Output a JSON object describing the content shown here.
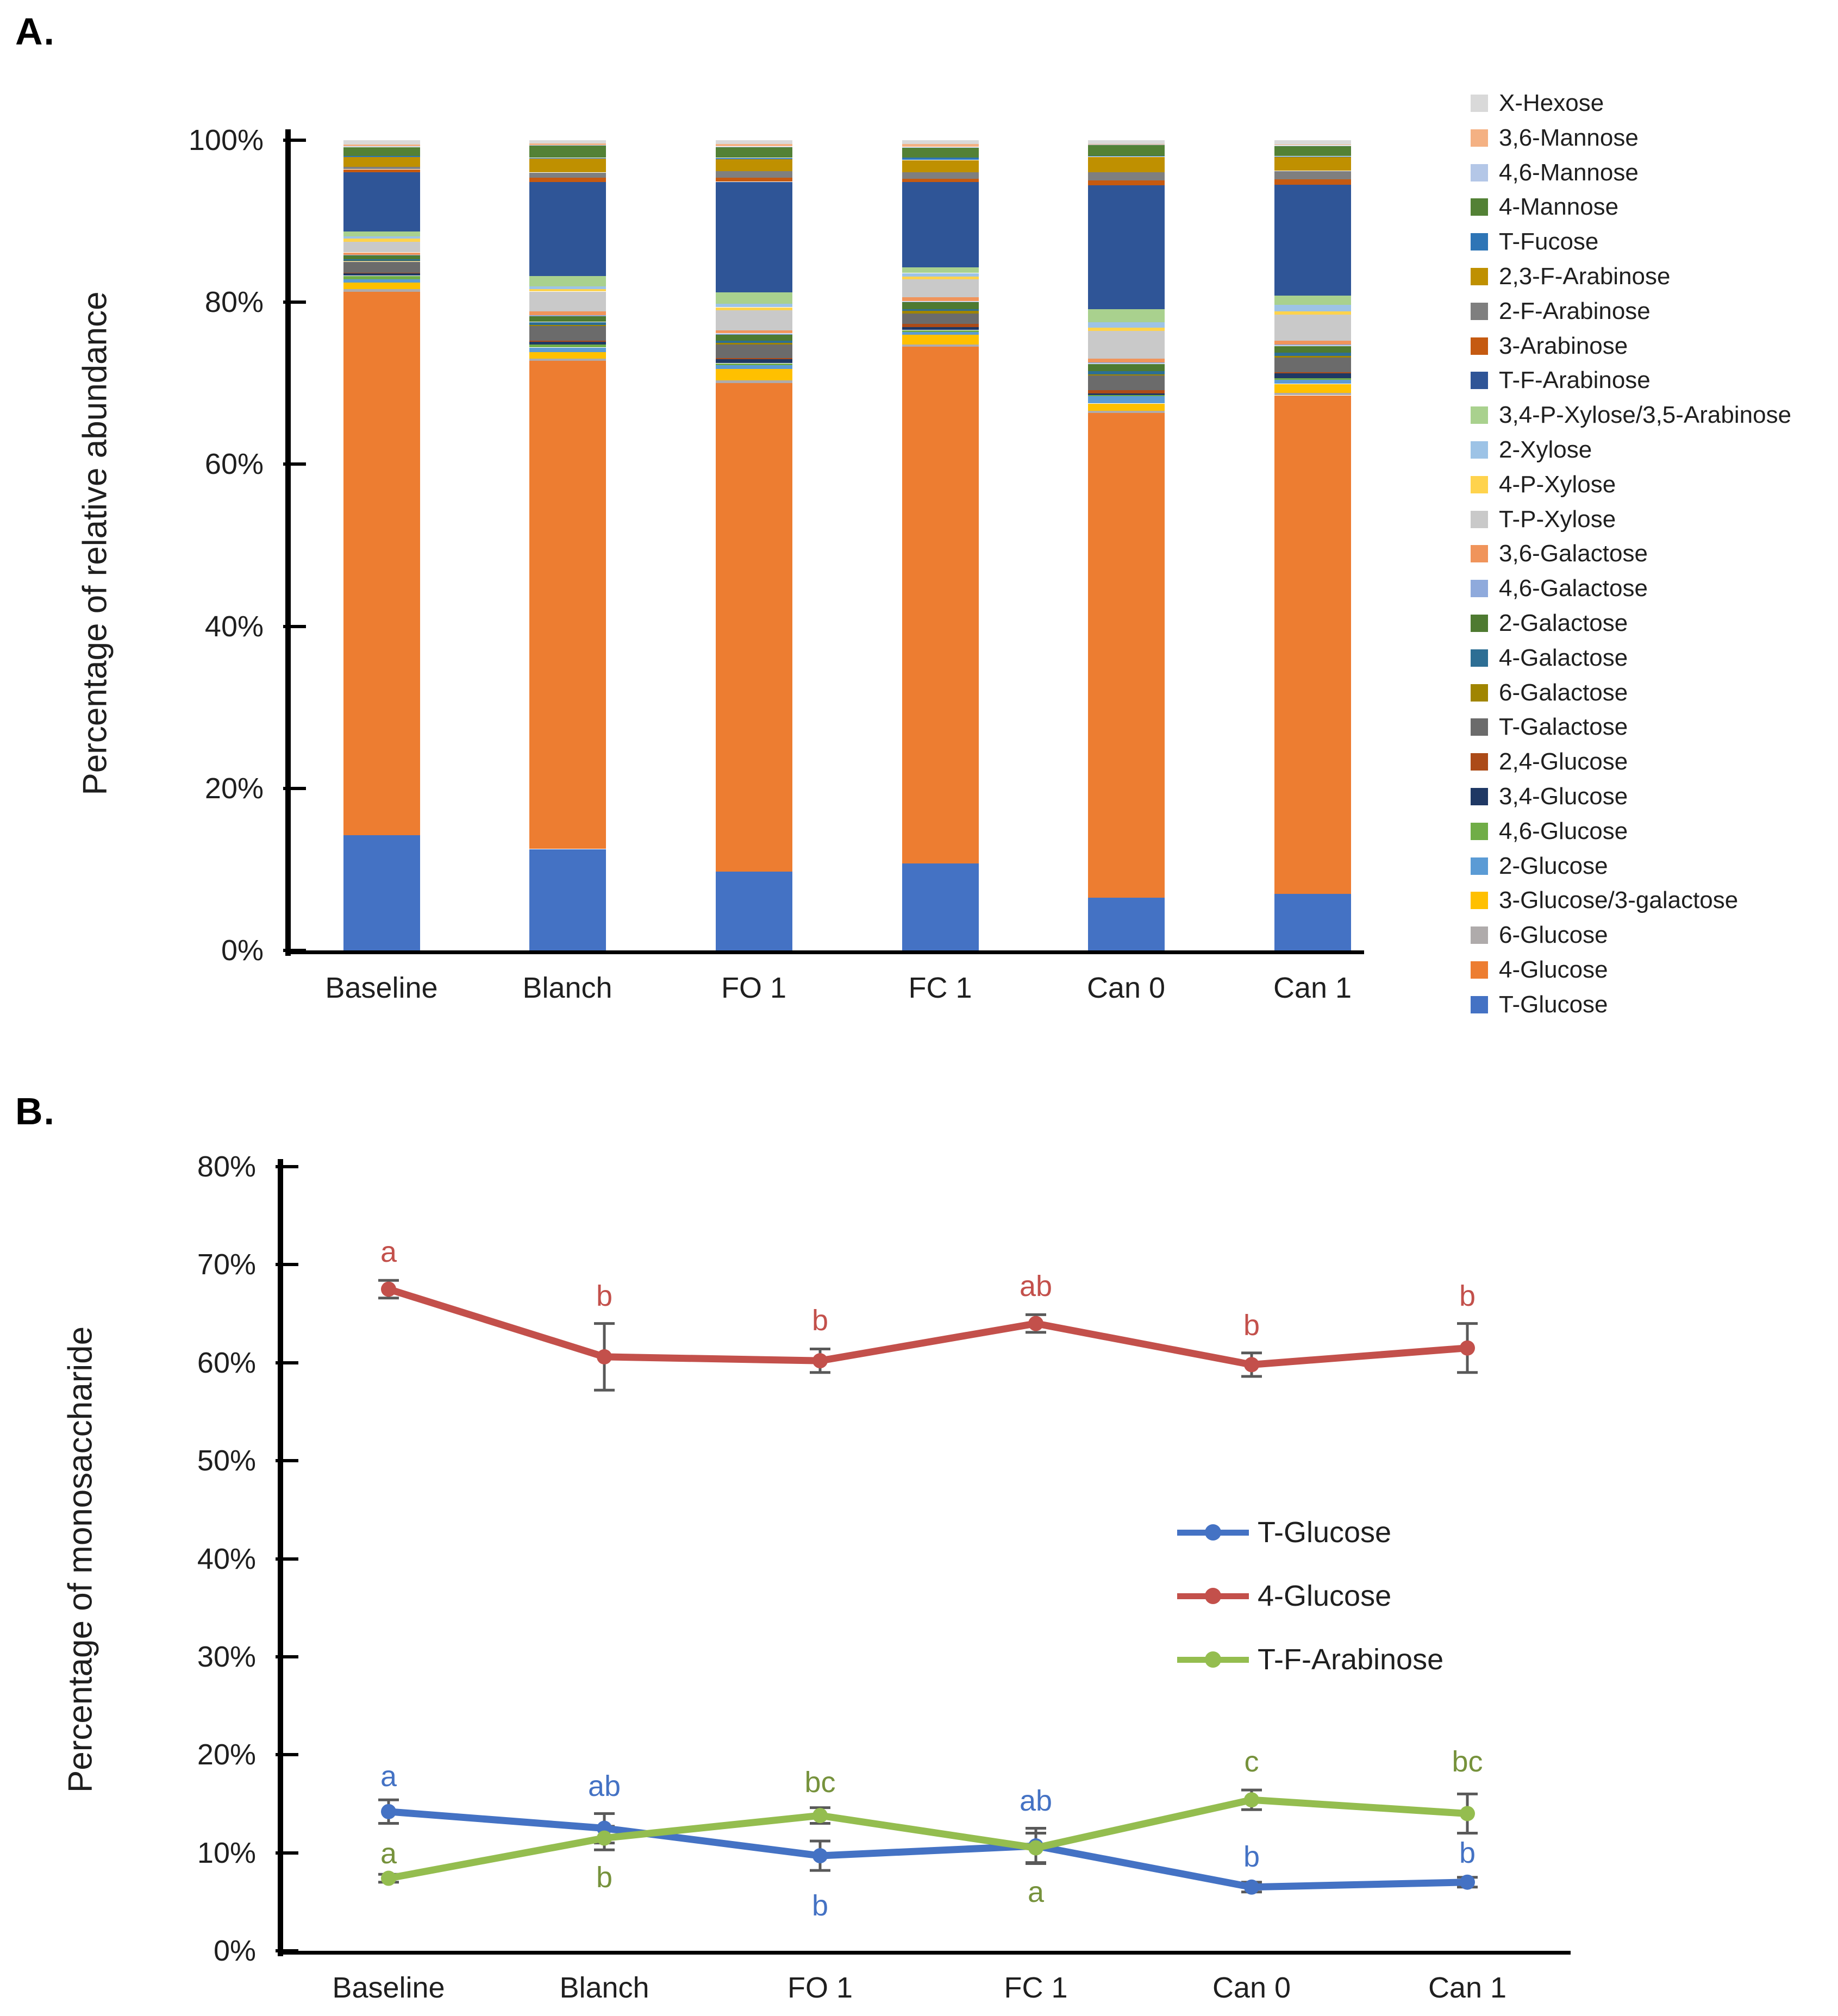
{
  "figure": {
    "panelA_label": "A.",
    "panelB_label": "B.",
    "background": "#ffffff",
    "text_color": "#1f1f1f",
    "axis_color": "#000000"
  },
  "chart_data": [
    {
      "type": "bar",
      "stacked": true,
      "title": "",
      "xlabel": "",
      "ylabel": "Percentage of relative abundance",
      "categories": [
        "Baseline",
        "Blanch",
        "FO 1",
        "FC 1",
        "Can 0",
        "Can 1"
      ],
      "ylim": [
        0,
        100
      ],
      "ytick_step": 20,
      "y_tick_labels": [
        "0%",
        "20%",
        "40%",
        "60%",
        "80%",
        "100%"
      ],
      "grid": false,
      "legend_position": "right",
      "legend_note": "legend displayed top-to-bottom is reverse of stacking order (stack builds bottom-up from T-Glucose)",
      "series": [
        {
          "name": "T-Glucose",
          "color": "#4472C4",
          "values": [
            14.2,
            12.5,
            9.7,
            10.7,
            6.5,
            7.0
          ]
        },
        {
          "name": "4-Glucose",
          "color": "#ED7D31",
          "values": [
            67.1,
            60.25,
            60.3,
            63.8,
            59.8,
            61.5
          ]
        },
        {
          "name": "6-Glucose",
          "color": "#AFABAB",
          "values": [
            0.35,
            0.3,
            0.35,
            0.3,
            0.3,
            0.3
          ]
        },
        {
          "name": "3-Glucose/3-galactose",
          "color": "#FFC000",
          "values": [
            0.8,
            0.8,
            1.4,
            1.2,
            0.9,
            1.1
          ]
        },
        {
          "name": "2-Glucose",
          "color": "#5B9BD5",
          "values": [
            0.4,
            0.55,
            0.5,
            0.35,
            0.9,
            0.5
          ]
        },
        {
          "name": "4,6-Glucose",
          "color": "#70AD47",
          "values": [
            0.4,
            0.35,
            0.2,
            0.2,
            0.15,
            0.2
          ]
        },
        {
          "name": "3,4-Glucose",
          "color": "#1F3864",
          "values": [
            0.3,
            0.35,
            0.5,
            0.35,
            0.2,
            0.6
          ]
        },
        {
          "name": "2,4-Glucose",
          "color": "#AC4B18",
          "values": [
            0.1,
            0.15,
            0.15,
            0.4,
            0.4,
            0.2
          ]
        },
        {
          "name": "T-Galactose",
          "color": "#6B6B6B",
          "values": [
            1.35,
            1.8,
            1.7,
            1.3,
            1.8,
            1.8
          ]
        },
        {
          "name": "6-Galactose",
          "color": "#A08500",
          "values": [
            0.1,
            0.15,
            0.2,
            0.35,
            0.15,
            0.2
          ]
        },
        {
          "name": "4-Galactose",
          "color": "#2D6E94",
          "values": [
            0.2,
            0.35,
            0.25,
            0.2,
            0.4,
            0.4
          ]
        },
        {
          "name": "2-Galactose",
          "color": "#4E7A31",
          "values": [
            0.45,
            0.7,
            0.75,
            0.85,
            0.9,
            0.8
          ]
        },
        {
          "name": "4,6-Galactose",
          "color": "#8FAADC",
          "values": [
            0.1,
            0.15,
            0.15,
            0.1,
            0.15,
            0.15
          ]
        },
        {
          "name": "3,6-Galactose",
          "color": "#F0945B",
          "values": [
            0.3,
            0.5,
            0.35,
            0.5,
            0.5,
            0.5
          ]
        },
        {
          "name": "T-P-Xylose",
          "color": "#C9C9C9",
          "values": [
            1.3,
            2.4,
            2.5,
            2.2,
            3.4,
            3.2
          ]
        },
        {
          "name": "4-P-Xylose",
          "color": "#FFD34D",
          "values": [
            0.4,
            0.3,
            0.35,
            0.4,
            0.4,
            0.4
          ]
        },
        {
          "name": "2-Xylose",
          "color": "#9DC3E6",
          "values": [
            0.3,
            0.35,
            0.5,
            0.4,
            0.7,
            0.8
          ]
        },
        {
          "name": "3,4-P-Xylose/3,5-Arabinose",
          "color": "#A9D18E",
          "values": [
            0.6,
            1.3,
            1.4,
            0.75,
            1.6,
            1.15
          ]
        },
        {
          "name": "T-F-Arabinose",
          "color": "#2F5597",
          "values": [
            7.3,
            11.6,
            13.6,
            10.5,
            15.3,
            13.7
          ]
        },
        {
          "name": "3-Arabinose",
          "color": "#C55A11",
          "values": [
            0.35,
            0.55,
            0.5,
            0.4,
            0.6,
            0.7
          ]
        },
        {
          "name": "2-F-Arabinose",
          "color": "#7F7F7F",
          "values": [
            0.3,
            0.6,
            0.8,
            0.8,
            1.0,
            1.0
          ]
        },
        {
          "name": "2,3-F-Arabinose",
          "color": "#BF9000",
          "values": [
            1.2,
            1.7,
            1.5,
            1.5,
            1.9,
            1.7
          ]
        },
        {
          "name": "T-Fucose",
          "color": "#2E75B6",
          "values": [
            0.15,
            0.1,
            0.15,
            0.3,
            0.1,
            0.1
          ]
        },
        {
          "name": "4-Mannose",
          "color": "#538135",
          "values": [
            1.1,
            1.5,
            1.3,
            1.2,
            1.35,
            1.3
          ]
        },
        {
          "name": "4,6-Mannose",
          "color": "#B4C7E7",
          "values": [
            0.1,
            0.1,
            0.1,
            0.1,
            0.05,
            0.05
          ]
        },
        {
          "name": "3,6-Mannose",
          "color": "#F4B183",
          "values": [
            0.2,
            0.2,
            0.3,
            0.35,
            0.1,
            0.1
          ]
        },
        {
          "name": "X-Hexose",
          "color": "#D9D9D9",
          "values": [
            0.55,
            0.4,
            0.5,
            0.5,
            0.45,
            0.55
          ]
        }
      ]
    },
    {
      "type": "line",
      "title": "",
      "xlabel": "",
      "ylabel": "Percentage of monosaccharide",
      "categories": [
        "Baseline",
        "Blanch",
        "FO 1",
        "FC 1",
        "Can 0",
        "Can 1"
      ],
      "ylim": [
        0,
        80
      ],
      "ytick_step": 10,
      "y_tick_labels": [
        "0%",
        "10%",
        "20%",
        "30%",
        "40%",
        "50%",
        "60%",
        "70%",
        "80%"
      ],
      "grid": false,
      "legend_position": "center-right",
      "error_bar_color": "#595959",
      "series": [
        {
          "name": "T-Glucose",
          "color": "#4472C4",
          "letter_color": "#4472C4",
          "values": [
            14.2,
            12.5,
            9.7,
            10.7,
            6.5,
            7.0
          ],
          "errors": [
            1.2,
            1.5,
            1.5,
            1.8,
            0.5,
            0.5
          ],
          "letters": [
            {
              "text": "a",
              "y": 17.8
            },
            {
              "text": "ab",
              "y": 16.8
            },
            {
              "text": "b",
              "y": 4.6
            },
            {
              "text": "ab",
              "y": 15.3
            },
            {
              "text": "b",
              "y": 9.6
            },
            {
              "text": "b",
              "y": 10.0
            }
          ]
        },
        {
          "name": "4-Glucose",
          "color": "#C3504B",
          "letter_color": "#C3504B",
          "values": [
            67.5,
            60.6,
            60.2,
            64.0,
            59.8,
            61.5
          ],
          "errors": [
            0.9,
            3.4,
            1.2,
            0.9,
            1.2,
            2.5
          ],
          "letters": [
            {
              "text": "a",
              "y": 71.3
            },
            {
              "text": "b",
              "y": 66.8
            },
            {
              "text": "b",
              "y": 64.3
            },
            {
              "text": "ab",
              "y": 67.8
            },
            {
              "text": "b",
              "y": 63.8
            },
            {
              "text": "b",
              "y": 66.8
            }
          ]
        },
        {
          "name": "T-F-Arabinose",
          "color": "#94BD4F",
          "letter_color": "#76923C",
          "values": [
            7.4,
            11.5,
            13.8,
            10.5,
            15.4,
            14.0
          ],
          "errors": [
            0.4,
            1.2,
            0.8,
            1.5,
            1.0,
            2.0
          ],
          "letters": [
            {
              "text": "a",
              "y": 9.9
            },
            {
              "text": "b",
              "y": 7.5
            },
            {
              "text": "bc",
              "y": 17.2
            },
            {
              "text": "a",
              "y": 6.0
            },
            {
              "text": "c",
              "y": 19.3
            },
            {
              "text": "bc",
              "y": 19.3
            }
          ]
        }
      ]
    }
  ]
}
